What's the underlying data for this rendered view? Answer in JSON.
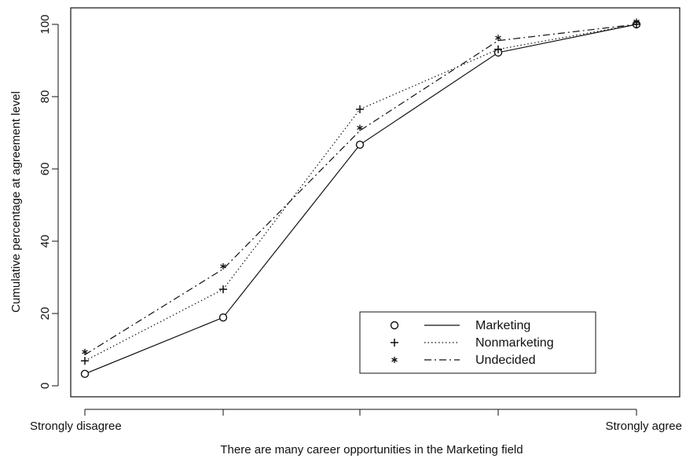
{
  "chart_data": {
    "type": "line",
    "title": "",
    "xlabel": "There are many career opportunities in the Marketing field",
    "ylabel": "Cumulative percentage at agreement level",
    "categories": [
      "Strongly disagree",
      "",
      "",
      "",
      "Strongly agree"
    ],
    "x_tick_labels_shown": [
      "Strongly disagree",
      "Strongly agree"
    ],
    "ylim": [
      -2,
      103
    ],
    "yticks": [
      0,
      20,
      40,
      60,
      80,
      100
    ],
    "grid": false,
    "legend_position": "bottom-right",
    "series": [
      {
        "name": "Marketing",
        "marker": "o",
        "line_style": "solid",
        "values": [
          3.3,
          18.9,
          66.7,
          92.2,
          100
        ]
      },
      {
        "name": "Nonmarketing",
        "marker": "+",
        "line_style": "dotted",
        "values": [
          6.9,
          26.7,
          76.5,
          93.1,
          100
        ]
      },
      {
        "name": "Undecided",
        "marker": "*",
        "line_style": "dashdot",
        "values": [
          8.6,
          32.3,
          70.6,
          95.5,
          100
        ]
      }
    ]
  }
}
